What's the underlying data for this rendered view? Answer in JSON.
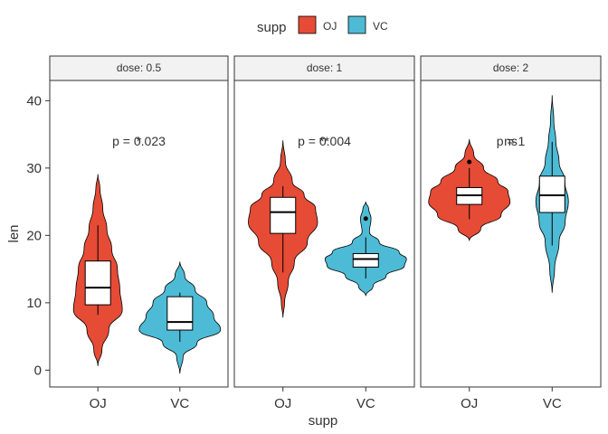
{
  "chart_data": {
    "type": "violin",
    "xlabel": "supp",
    "ylabel": "len",
    "ylim": [
      -2.5,
      43
    ],
    "yticks": [
      0,
      10,
      20,
      30,
      40
    ],
    "legend": {
      "title": "supp",
      "placement": "top",
      "entries": [
        {
          "name": "OJ",
          "color": "#E64B35"
        },
        {
          "name": "VC",
          "color": "#4DBBD5"
        }
      ]
    },
    "categories": [
      "OJ",
      "VC"
    ],
    "grid": false,
    "panels": [
      {
        "strip_label": "dose: 0.5",
        "annotation": {
          "text": "p = 0.023",
          "overlay": "*",
          "y": 34
        },
        "groups": [
          {
            "name": "OJ",
            "color": "#E64B35",
            "box": {
              "min": 8.2,
              "q1": 9.7,
              "median": 12.25,
              "q3": 16.2,
              "max": 21.5
            },
            "outliers": [],
            "violin": {
              "y": [
                0.6,
                3,
                6,
                9,
                12,
                15,
                18,
                21,
                24,
                27,
                29.1
              ],
              "w": [
                0.0,
                0.1,
                0.27,
                0.6,
                0.54,
                0.48,
                0.34,
                0.22,
                0.12,
                0.05,
                0.0
              ]
            }
          },
          {
            "name": "VC",
            "color": "#4DBBD5",
            "box": {
              "min": 4.2,
              "q1": 5.95,
              "median": 7.15,
              "q3": 10.9,
              "max": 11.5
            },
            "outliers": [],
            "violin": {
              "y": [
                -0.5,
                2,
                4,
                6,
                8,
                10,
                12,
                14,
                16.1
              ],
              "w": [
                0.0,
                0.08,
                0.42,
                1.0,
                0.83,
                0.66,
                0.37,
                0.12,
                0.0
              ]
            }
          }
        ]
      },
      {
        "strip_label": "dose: 1",
        "annotation": {
          "text": "p = 0.004",
          "overlay": "**",
          "y": 34
        },
        "groups": [
          {
            "name": "OJ",
            "color": "#E64B35",
            "box": {
              "min": 14.5,
              "q1": 20.3,
              "median": 23.45,
              "q3": 25.65,
              "max": 27.3
            },
            "outliers": [],
            "violin": {
              "y": [
                7.8,
                10,
                13,
                16,
                19,
                22,
                24,
                26,
                28,
                31,
                34.1
              ],
              "w": [
                0.0,
                0.04,
                0.13,
                0.28,
                0.6,
                0.85,
                0.8,
                0.52,
                0.23,
                0.06,
                0.0
              ]
            }
          },
          {
            "name": "VC",
            "color": "#4DBBD5",
            "box": {
              "min": 13.6,
              "q1": 15.3,
              "median": 16.5,
              "q3": 17.3,
              "max": 19.7
            },
            "outliers": [
              22.5
            ],
            "violin": {
              "y": [
                11,
                12.5,
                14,
                15.5,
                16.5,
                17.5,
                19,
                20.5,
                22.5,
                24,
                25
              ],
              "w": [
                0.0,
                0.18,
                0.5,
                0.95,
                1.0,
                0.82,
                0.33,
                0.09,
                0.13,
                0.07,
                0.0
              ]
            }
          }
        ]
      },
      {
        "strip_label": "dose: 2",
        "annotation": {
          "text": "p = 1",
          "overlay": "ns",
          "y": 34
        },
        "groups": [
          {
            "name": "OJ",
            "color": "#E64B35",
            "box": {
              "min": 22.4,
              "q1": 24.6,
              "median": 25.95,
              "q3": 27.1,
              "max": 30.0
            },
            "outliers": [
              30.9
            ],
            "violin": {
              "y": [
                19.2,
                21,
                23,
                25,
                26.5,
                28,
                30,
                32,
                34.3
              ],
              "w": [
                0.0,
                0.28,
                0.78,
                1.0,
                0.95,
                0.7,
                0.35,
                0.11,
                0.0
              ]
            }
          },
          {
            "name": "VC",
            "color": "#4DBBD5",
            "box": {
              "min": 18.5,
              "q1": 23.4,
              "median": 25.95,
              "q3": 28.8,
              "max": 33.9
            },
            "outliers": [],
            "violin": {
              "y": [
                11.5,
                15,
                19,
                22,
                25,
                28,
                31,
                34,
                37,
                40.8
              ],
              "w": [
                0.0,
                0.06,
                0.17,
                0.32,
                0.4,
                0.31,
                0.17,
                0.09,
                0.04,
                0.0
              ]
            }
          }
        ]
      }
    ]
  }
}
